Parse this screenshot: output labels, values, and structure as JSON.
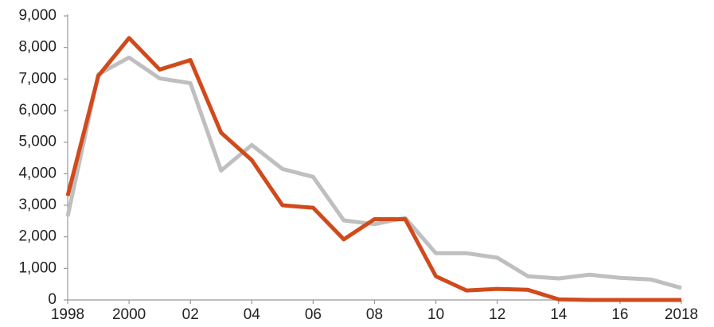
{
  "chart_data": {
    "type": "line",
    "categories": [
      "1998",
      null,
      "2000",
      null,
      "02",
      null,
      "04",
      null,
      "06",
      null,
      "08",
      null,
      "10",
      null,
      "12",
      null,
      "14",
      null,
      "16",
      null,
      "2018"
    ],
    "series": [
      {
        "color": "#d04a1c",
        "values": [
          3300,
          7100,
          8300,
          7300,
          7600,
          5300,
          4430,
          3000,
          2920,
          1920,
          2560,
          2560,
          750,
          300,
          350,
          320,
          20,
          0,
          0,
          0,
          0
        ]
      },
      {
        "color": "#bfbfbf",
        "values": [
          2650,
          7150,
          7680,
          7020,
          6870,
          4100,
          4910,
          4150,
          3900,
          2520,
          2400,
          2600,
          1480,
          1480,
          1340,
          750,
          680,
          800,
          700,
          650,
          380
        ]
      }
    ],
    "ylim": [
      0,
      9000
    ],
    "yticks": [
      0,
      {
        "value": 1000,
        "label": "1,000"
      },
      {
        "value": 2000,
        "label": "2,000"
      },
      {
        "value": 3000,
        "label": "3,000"
      },
      {
        "value": 4000,
        "label": "4,000"
      },
      {
        "value": 5000,
        "label": "5,000"
      },
      {
        "value": 6000,
        "label": "6,000"
      },
      {
        "value": 7000,
        "label": "7,000"
      },
      {
        "value": 8000,
        "label": "8,000"
      },
      {
        "value": 9000,
        "label": "9,000"
      }
    ],
    "grid": false
  }
}
